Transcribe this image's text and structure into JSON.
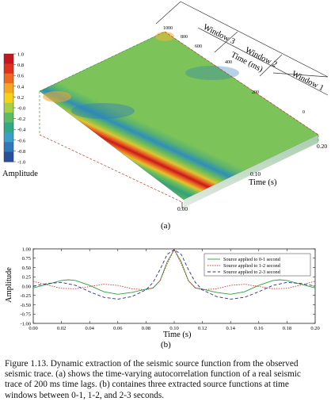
{
  "panel_a": {
    "label": "(a)",
    "colorbar": {
      "title": "Amplitude",
      "ticks": [
        "1.0",
        "0.8",
        "0.6",
        "0.4",
        "0.2",
        "-0.0",
        "-0.2",
        "-0.4",
        "-0.6",
        "-0.8",
        "-1.0"
      ],
      "colors": [
        "#c4161c",
        "#e0301e",
        "#ee6a20",
        "#f5a623",
        "#f3d319",
        "#a8cf45",
        "#5dbb63",
        "#2fa987",
        "#3a9fc9",
        "#2f79b8",
        "#2a4f9e"
      ]
    },
    "lag_axis": {
      "title": "Time (ms)",
      "ticks": [
        "1000",
        "800",
        "600",
        "400",
        "200",
        "0"
      ]
    },
    "time_axis": {
      "title": "Time (s)",
      "ticks": [
        "0.00",
        "0.10",
        "0.20"
      ]
    },
    "windows": [
      "Window 3",
      "Window 2",
      "Window 1"
    ]
  },
  "panel_b": {
    "label": "(b)",
    "chart_data": {
      "type": "line",
      "xlabel": "Time (s)",
      "ylabel": "Amplitude",
      "xlim": [
        0.0,
        0.2
      ],
      "ylim": [
        -1.0,
        1.0
      ],
      "x_ticks": [
        "0.00",
        "0.02",
        "0.04",
        "0.06",
        "0.08",
        "0.10",
        "0.12",
        "0.14",
        "0.16",
        "0.18",
        "0.20"
      ],
      "y_ticks": [
        "1.00",
        "0.75",
        "0.50",
        "0.25",
        "0.00",
        "-0.25",
        "-0.50",
        "-0.75",
        "-1.00"
      ],
      "legend_position": "top-right",
      "grid": false,
      "series": [
        {
          "name": "Source applied to 0-1 second",
          "color": "#2e9e3e",
          "dash": "solid",
          "x": [
            0.0,
            0.01,
            0.02,
            0.025,
            0.03,
            0.04,
            0.05,
            0.06,
            0.07,
            0.08,
            0.085,
            0.09,
            0.095,
            0.1,
            0.105,
            0.11,
            0.115,
            0.12,
            0.13,
            0.14,
            0.15,
            0.16,
            0.17,
            0.175,
            0.18,
            0.19,
            0.2
          ],
          "y": [
            -0.05,
            0.05,
            0.15,
            0.17,
            0.15,
            0.02,
            -0.15,
            -0.22,
            -0.17,
            -0.08,
            -0.05,
            0.15,
            0.65,
            0.98,
            0.65,
            0.15,
            -0.05,
            -0.08,
            -0.17,
            -0.22,
            -0.15,
            0.02,
            0.15,
            0.17,
            0.15,
            0.05,
            -0.05
          ]
        },
        {
          "name": "Source applied to 1-2 second",
          "color": "#d8342b",
          "dash": "dotted",
          "x": [
            0.0,
            0.01,
            0.02,
            0.03,
            0.04,
            0.05,
            0.06,
            0.07,
            0.08,
            0.085,
            0.09,
            0.095,
            0.1,
            0.105,
            0.11,
            0.115,
            0.12,
            0.13,
            0.14,
            0.15,
            0.16,
            0.17,
            0.18,
            0.19,
            0.2
          ],
          "y": [
            0.13,
            0.03,
            -0.06,
            -0.07,
            -0.01,
            0.05,
            0.02,
            -0.07,
            -0.1,
            -0.05,
            0.15,
            0.6,
            0.98,
            0.6,
            0.15,
            -0.05,
            -0.1,
            -0.07,
            0.02,
            0.05,
            -0.01,
            -0.07,
            -0.06,
            0.03,
            0.13
          ]
        },
        {
          "name": "Source applied to 2-3 second",
          "color": "#2b2f8c",
          "dash": "dashed",
          "x": [
            0.0,
            0.01,
            0.02,
            0.03,
            0.04,
            0.05,
            0.06,
            0.07,
            0.08,
            0.085,
            0.09,
            0.095,
            0.1,
            0.105,
            0.11,
            0.115,
            0.12,
            0.13,
            0.14,
            0.15,
            0.16,
            0.17,
            0.18,
            0.19,
            0.2
          ],
          "y": [
            0.0,
            0.07,
            0.1,
            0.02,
            -0.15,
            -0.3,
            -0.35,
            -0.28,
            -0.1,
            0.1,
            0.45,
            0.85,
            0.98,
            0.85,
            0.45,
            0.1,
            -0.1,
            -0.28,
            -0.35,
            -0.3,
            -0.15,
            0.02,
            0.1,
            0.07,
            0.0
          ]
        }
      ]
    }
  },
  "caption": {
    "lines": [
      "Figure 1.13. Dynamic extraction of the seismic source function from the observed",
      "seismic trace.  (a) shows the time-varying autocorrelation function of a real seismic",
      "trace of 200 ms time lags.  (b) containes three extracted source functions at time",
      "windows between 0-1, 1-2, and 2-3 seconds."
    ]
  }
}
